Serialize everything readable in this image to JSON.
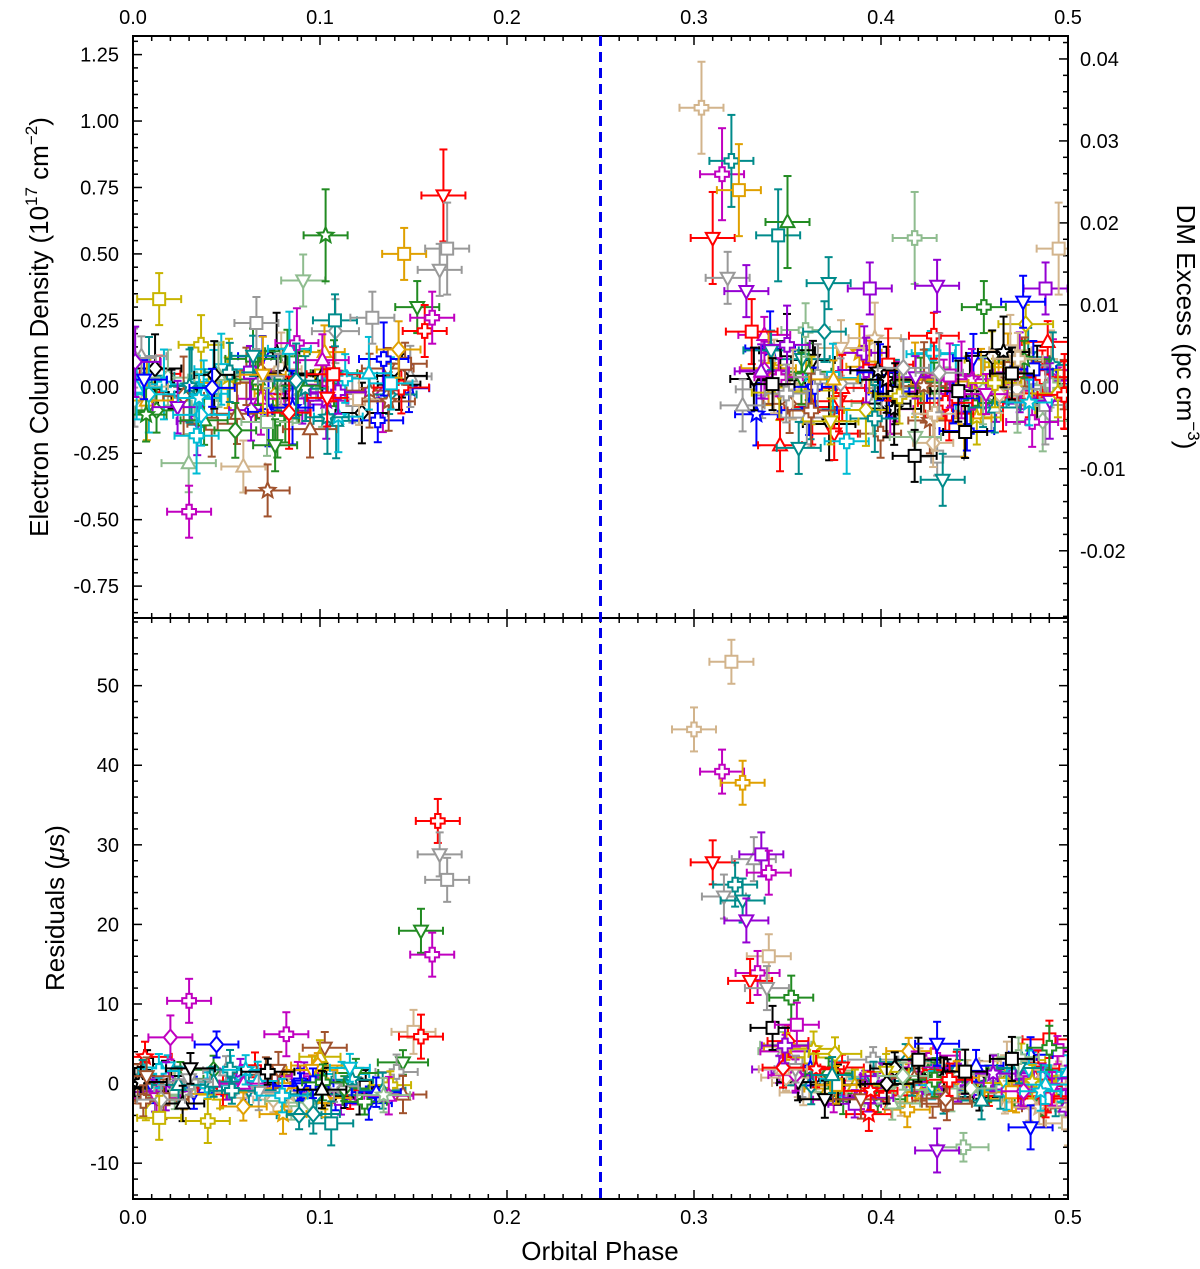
{
  "chart_data": [
    {
      "type": "scatter",
      "panel": "top",
      "xlim": [
        0.0,
        0.5
      ],
      "ylim": [
        -0.87,
        1.32
      ],
      "top_xticks": [
        "0.0",
        "0.1",
        "0.2",
        "0.3",
        "0.4",
        "0.5"
      ],
      "yticks": [
        "-0.75",
        "-0.50",
        "-0.25",
        "0.00",
        "0.25",
        "0.50",
        "0.75",
        "1.00",
        "1.25"
      ],
      "ylabel_left_parts": [
        "Electron Column Density (10",
        "17",
        " cm",
        "−2",
        ")"
      ],
      "right_axis": {
        "ylabel_parts": [
          "DM Excess (pc cm",
          "−3",
          ")"
        ],
        "ylim": [
          -0.0282,
          0.0428
        ],
        "ticks": [
          "-0.02",
          "-0.01",
          "0.00",
          "0.01",
          "0.02",
          "0.03",
          "0.04"
        ]
      },
      "vline_x": 0.25,
      "vline_color": "#0000ee",
      "highlights": [
        {
          "x": 0.014,
          "y": 0.33,
          "color": "#c8b400",
          "marker": "square"
        },
        {
          "x": 0.03,
          "y": -0.47,
          "color": "#c000c0",
          "marker": "plus"
        },
        {
          "x": 0.059,
          "y": -0.3,
          "color": "#d2b48c",
          "marker": "triangle-up"
        },
        {
          "x": 0.072,
          "y": -0.39,
          "color": "#a0522d",
          "marker": "star"
        },
        {
          "x": 0.076,
          "y": -0.22,
          "color": "#228b22",
          "marker": "triangle-down"
        },
        {
          "x": 0.066,
          "y": 0.24,
          "color": "#999999",
          "marker": "square"
        },
        {
          "x": 0.091,
          "y": 0.4,
          "color": "#8fbc8f",
          "marker": "triangle-down"
        },
        {
          "x": 0.103,
          "y": 0.57,
          "color": "#228b22",
          "marker": "star"
        },
        {
          "x": 0.108,
          "y": 0.25,
          "color": "#008b8b",
          "marker": "square"
        },
        {
          "x": 0.128,
          "y": 0.26,
          "color": "#999999",
          "marker": "square"
        },
        {
          "x": 0.145,
          "y": 0.5,
          "color": "#e0a000",
          "marker": "square"
        },
        {
          "x": 0.152,
          "y": 0.3,
          "color": "#228b22",
          "marker": "triangle-down"
        },
        {
          "x": 0.156,
          "y": 0.21,
          "color": "#ff0000",
          "marker": "plus"
        },
        {
          "x": 0.16,
          "y": 0.26,
          "color": "#c000c0",
          "marker": "plus"
        },
        {
          "x": 0.164,
          "y": 0.44,
          "color": "#999999",
          "marker": "triangle-down"
        },
        {
          "x": 0.166,
          "y": 0.72,
          "color": "#ff0000",
          "marker": "triangle-down"
        },
        {
          "x": 0.168,
          "y": 0.52,
          "color": "#999999",
          "marker": "square"
        },
        {
          "x": 0.304,
          "y": 1.05,
          "color": "#d2b48c",
          "marker": "plus"
        },
        {
          "x": 0.31,
          "y": 0.56,
          "color": "#ff0000",
          "marker": "triangle-down"
        },
        {
          "x": 0.315,
          "y": 0.8,
          "color": "#c000c0",
          "marker": "plus"
        },
        {
          "x": 0.32,
          "y": 0.85,
          "color": "#008b8b",
          "marker": "plus"
        },
        {
          "x": 0.324,
          "y": 0.74,
          "color": "#e0a000",
          "marker": "square"
        },
        {
          "x": 0.318,
          "y": 0.41,
          "color": "#999999",
          "marker": "triangle-down"
        },
        {
          "x": 0.328,
          "y": 0.36,
          "color": "#9400d3",
          "marker": "triangle-down"
        },
        {
          "x": 0.326,
          "y": -0.07,
          "color": "#999999",
          "marker": "triangle-up"
        },
        {
          "x": 0.342,
          "y": 0.01,
          "color": "#000000",
          "marker": "square"
        },
        {
          "x": 0.345,
          "y": 0.57,
          "color": "#008b8b",
          "marker": "square"
        },
        {
          "x": 0.35,
          "y": 0.62,
          "color": "#228b22",
          "marker": "triangle-up"
        },
        {
          "x": 0.346,
          "y": -0.22,
          "color": "#ff0000",
          "marker": "triangle-up"
        },
        {
          "x": 0.356,
          "y": -0.23,
          "color": "#008b8b",
          "marker": "triangle-down"
        },
        {
          "x": 0.372,
          "y": 0.39,
          "color": "#008b8b",
          "marker": "triangle-down"
        },
        {
          "x": 0.394,
          "y": 0.37,
          "color": "#9400d3",
          "marker": "square"
        },
        {
          "x": 0.418,
          "y": 0.56,
          "color": "#8fbc8f",
          "marker": "plus"
        },
        {
          "x": 0.43,
          "y": 0.38,
          "color": "#9400d3",
          "marker": "triangle-down"
        },
        {
          "x": 0.418,
          "y": -0.26,
          "color": "#000000",
          "marker": "square"
        },
        {
          "x": 0.433,
          "y": -0.35,
          "color": "#008b8b",
          "marker": "triangle-down"
        },
        {
          "x": 0.445,
          "y": -0.17,
          "color": "#000000",
          "marker": "square"
        },
        {
          "x": 0.47,
          "y": 0.05,
          "color": "#000000",
          "marker": "square"
        },
        {
          "x": 0.488,
          "y": 0.37,
          "color": "#9400d3",
          "marker": "square"
        },
        {
          "x": 0.476,
          "y": 0.32,
          "color": "#0000ff",
          "marker": "triangle-down"
        },
        {
          "x": 0.455,
          "y": 0.3,
          "color": "#228b22",
          "marker": "plus"
        },
        {
          "x": 0.495,
          "y": 0.52,
          "color": "#d2b48c",
          "marker": "square"
        }
      ]
    },
    {
      "type": "scatter",
      "panel": "bottom",
      "xlim": [
        0.0,
        0.5
      ],
      "ylim": [
        -14.5,
        58.5
      ],
      "xticks": [
        "0.0",
        "0.1",
        "0.2",
        "0.3",
        "0.4",
        "0.5"
      ],
      "yticks": [
        "-10",
        "0",
        "10",
        "20",
        "30",
        "40",
        "50"
      ],
      "xlabel": "Orbital Phase",
      "ylabel_parts": [
        "Residuals (",
        "μ",
        "s)"
      ],
      "vline_x": 0.25,
      "highlights": [
        {
          "x": 0.03,
          "y": 10.4,
          "color": "#c000c0",
          "marker": "plus"
        },
        {
          "x": 0.02,
          "y": 5.8,
          "color": "#c000c0",
          "marker": "diamond"
        },
        {
          "x": 0.014,
          "y": -4.3,
          "color": "#c8b400",
          "marker": "square"
        },
        {
          "x": 0.04,
          "y": -4.7,
          "color": "#c8b400",
          "marker": "plus"
        },
        {
          "x": 0.082,
          "y": 6.2,
          "color": "#c000c0",
          "marker": "plus"
        },
        {
          "x": 0.106,
          "y": -5.0,
          "color": "#008b8b",
          "marker": "square"
        },
        {
          "x": 0.15,
          "y": 6.5,
          "color": "#d2b48c",
          "marker": "square"
        },
        {
          "x": 0.154,
          "y": 5.9,
          "color": "#ff0000",
          "marker": "plus"
        },
        {
          "x": 0.154,
          "y": 19.2,
          "color": "#228b22",
          "marker": "triangle-down"
        },
        {
          "x": 0.16,
          "y": 16.2,
          "color": "#c000c0",
          "marker": "plus"
        },
        {
          "x": 0.163,
          "y": 33.0,
          "color": "#ff0000",
          "marker": "plus"
        },
        {
          "x": 0.164,
          "y": 28.8,
          "color": "#999999",
          "marker": "triangle-down"
        },
        {
          "x": 0.168,
          "y": 25.6,
          "color": "#999999",
          "marker": "square"
        },
        {
          "x": 0.3,
          "y": 44.5,
          "color": "#d2b48c",
          "marker": "plus"
        },
        {
          "x": 0.32,
          "y": 53.0,
          "color": "#d2b48c",
          "marker": "square"
        },
        {
          "x": 0.315,
          "y": 39.2,
          "color": "#c000c0",
          "marker": "plus"
        },
        {
          "x": 0.326,
          "y": 37.8,
          "color": "#e0a000",
          "marker": "plus"
        },
        {
          "x": 0.31,
          "y": 27.8,
          "color": "#ff0000",
          "marker": "triangle-down"
        },
        {
          "x": 0.332,
          "y": 28.2,
          "color": "#999999",
          "marker": "triangle-up"
        },
        {
          "x": 0.336,
          "y": 28.8,
          "color": "#9400d3",
          "marker": "square"
        },
        {
          "x": 0.34,
          "y": 26.5,
          "color": "#c000c0",
          "marker": "plus"
        },
        {
          "x": 0.322,
          "y": 25.0,
          "color": "#008b8b",
          "marker": "plus"
        },
        {
          "x": 0.316,
          "y": 23.5,
          "color": "#999999",
          "marker": "triangle-down"
        },
        {
          "x": 0.326,
          "y": 23.0,
          "color": "#008b8b",
          "marker": "triangle-down"
        },
        {
          "x": 0.328,
          "y": 20.5,
          "color": "#9400d3",
          "marker": "triangle-down"
        },
        {
          "x": 0.34,
          "y": 16.0,
          "color": "#d2b48c",
          "marker": "square"
        },
        {
          "x": 0.334,
          "y": 13.9,
          "color": "#c000c0",
          "marker": "plus"
        },
        {
          "x": 0.33,
          "y": 12.9,
          "color": "#ff0000",
          "marker": "triangle-down"
        },
        {
          "x": 0.339,
          "y": 12.0,
          "color": "#999999",
          "marker": "triangle-down"
        },
        {
          "x": 0.352,
          "y": 10.8,
          "color": "#228b22",
          "marker": "plus"
        },
        {
          "x": 0.342,
          "y": 7.0,
          "color": "#000000",
          "marker": "square"
        },
        {
          "x": 0.355,
          "y": 7.4,
          "color": "#c000c0",
          "marker": "square"
        },
        {
          "x": 0.43,
          "y": -8.4,
          "color": "#9400d3",
          "marker": "triangle-down"
        },
        {
          "x": 0.48,
          "y": -5.5,
          "color": "#0000ff",
          "marker": "triangle-down"
        },
        {
          "x": 0.42,
          "y": 3.0,
          "color": "#000000",
          "marker": "square"
        },
        {
          "x": 0.445,
          "y": 1.5,
          "color": "#000000",
          "marker": "square"
        },
        {
          "x": 0.47,
          "y": 3.1,
          "color": "#000000",
          "marker": "square"
        },
        {
          "x": 0.43,
          "y": 5.0,
          "color": "#0000ff",
          "marker": "triangle-down"
        },
        {
          "x": 0.49,
          "y": 4.5,
          "color": "#228b22",
          "marker": "plus"
        },
        {
          "x": 0.5,
          "y": -5.0,
          "color": "#d2b48c",
          "marker": "square"
        }
      ]
    }
  ]
}
